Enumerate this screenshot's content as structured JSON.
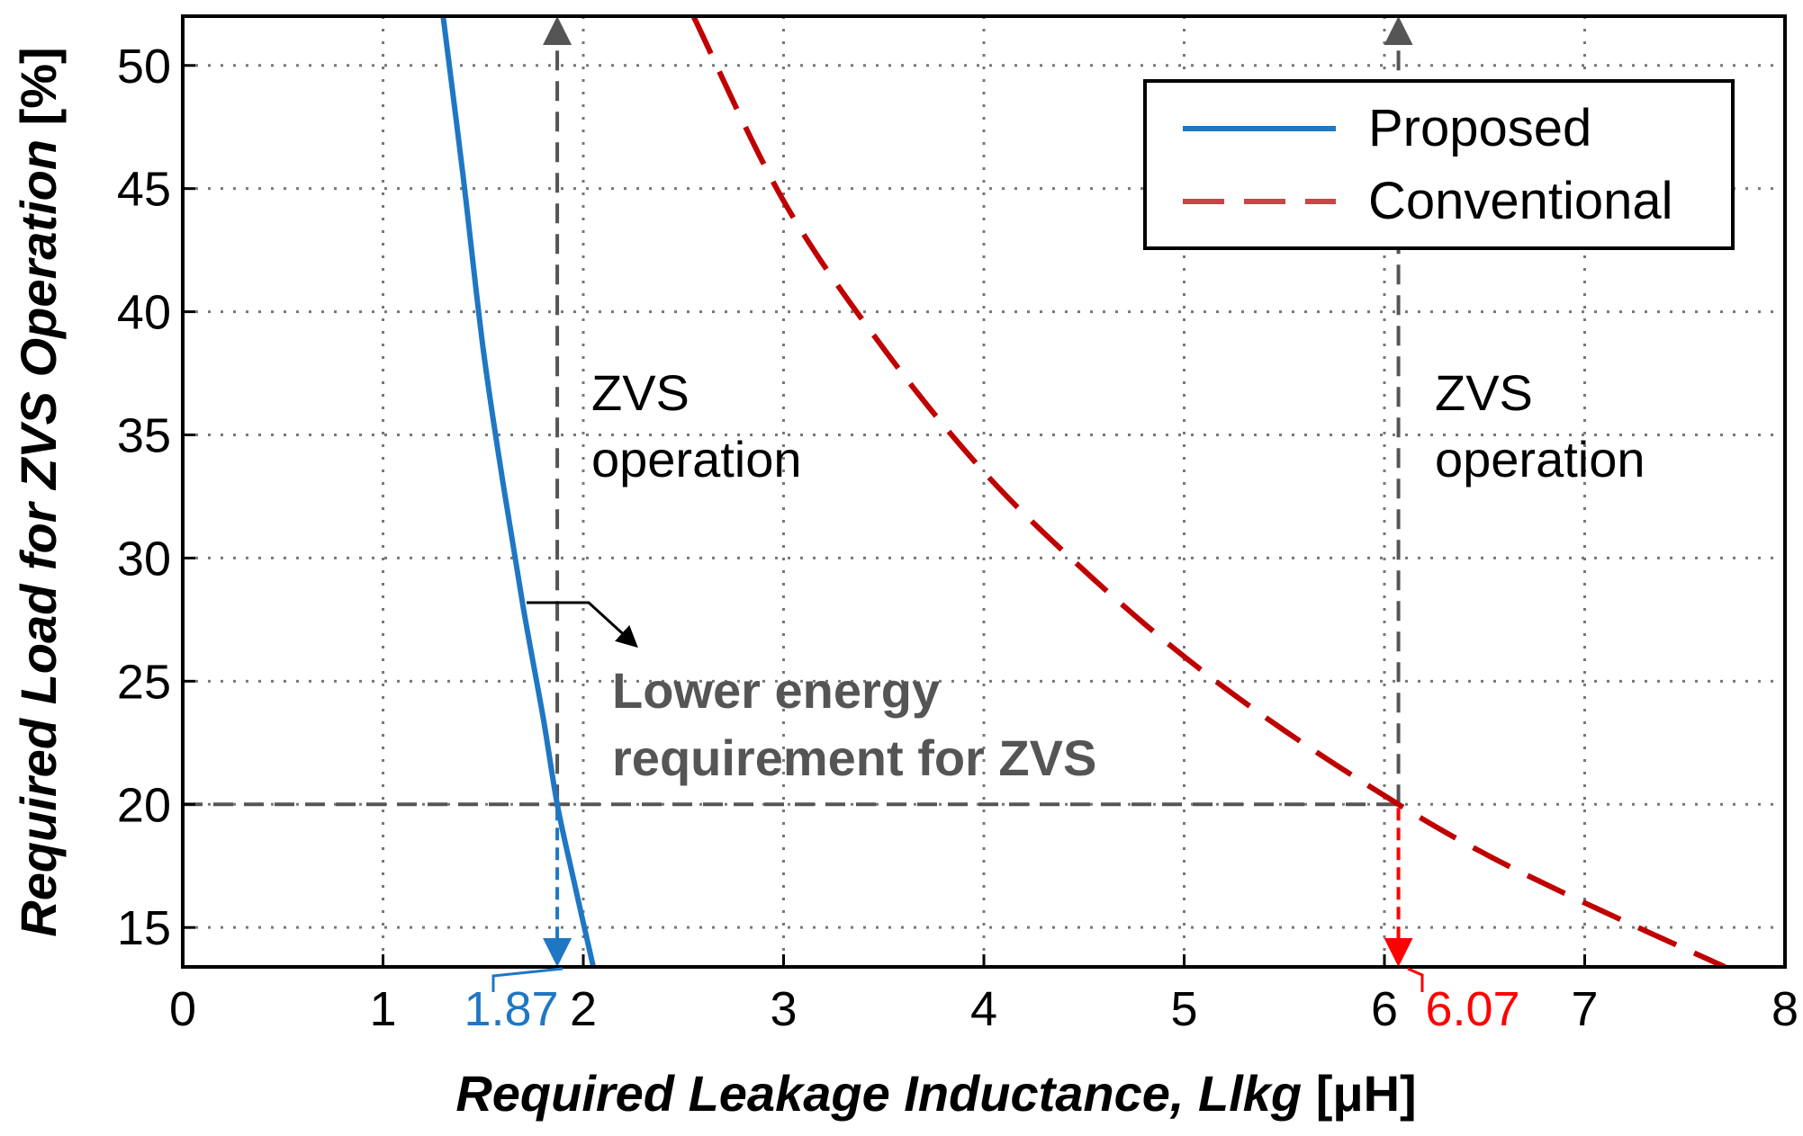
{
  "chart_data": {
    "type": "line",
    "xlabel": "Required Leakage Inductance, Llkg",
    "xunit": "[μH]",
    "ylabel": "Required Load for ZVS Operation",
    "yunit": "[%]",
    "xlim": [
      0,
      8
    ],
    "ylim": [
      13.4,
      52
    ],
    "grid": true,
    "x_ticks": [
      "0",
      "1",
      "2",
      "3",
      "4",
      "5",
      "6",
      "7",
      "8"
    ],
    "y_ticks": [
      "15",
      "20",
      "25",
      "30",
      "35",
      "40",
      "45",
      "50"
    ],
    "legend": {
      "position": "top-right"
    },
    "series": [
      {
        "name": "Proposed",
        "style": "solid",
        "color": "#1f77c4",
        "x": [
          1.3,
          1.4,
          1.5,
          1.6,
          1.7,
          1.8,
          1.87,
          1.95,
          2.05
        ],
        "y": [
          52,
          45.5,
          38.5,
          33.0,
          28.0,
          23.5,
          20.0,
          17.0,
          13.4
        ]
      },
      {
        "name": "Conventional",
        "style": "dashed",
        "color": "#c00000",
        "x": [
          2.55,
          3.0,
          3.5,
          4.0,
          4.5,
          5.0,
          5.5,
          6.07,
          6.5,
          7.0,
          7.7
        ],
        "y": [
          52,
          44.5,
          38.5,
          33.5,
          29.5,
          26.0,
          23.0,
          20.0,
          18.0,
          16.0,
          13.4
        ]
      }
    ],
    "reference_lines": {
      "load_level": 20,
      "proposed_inductance": 1.87,
      "conventional_inductance": 6.07
    },
    "annotations": {
      "proposed_value": "1.87",
      "conventional_value": "6.07",
      "zvs_left_line1": "ZVS",
      "zvs_left_line2": "operation",
      "zvs_right_line1": "ZVS",
      "zvs_right_line2": "operation",
      "note_line1": "Lower energy",
      "note_line2": "requirement for ZVS"
    },
    "colors": {
      "proposed": "#1f77c4",
      "conventional": "#c00000",
      "marker_proposed": "#1f77c4",
      "marker_conventional": "#ff0000",
      "reference": "#555555",
      "legend_conventional": "#cc4444"
    }
  }
}
